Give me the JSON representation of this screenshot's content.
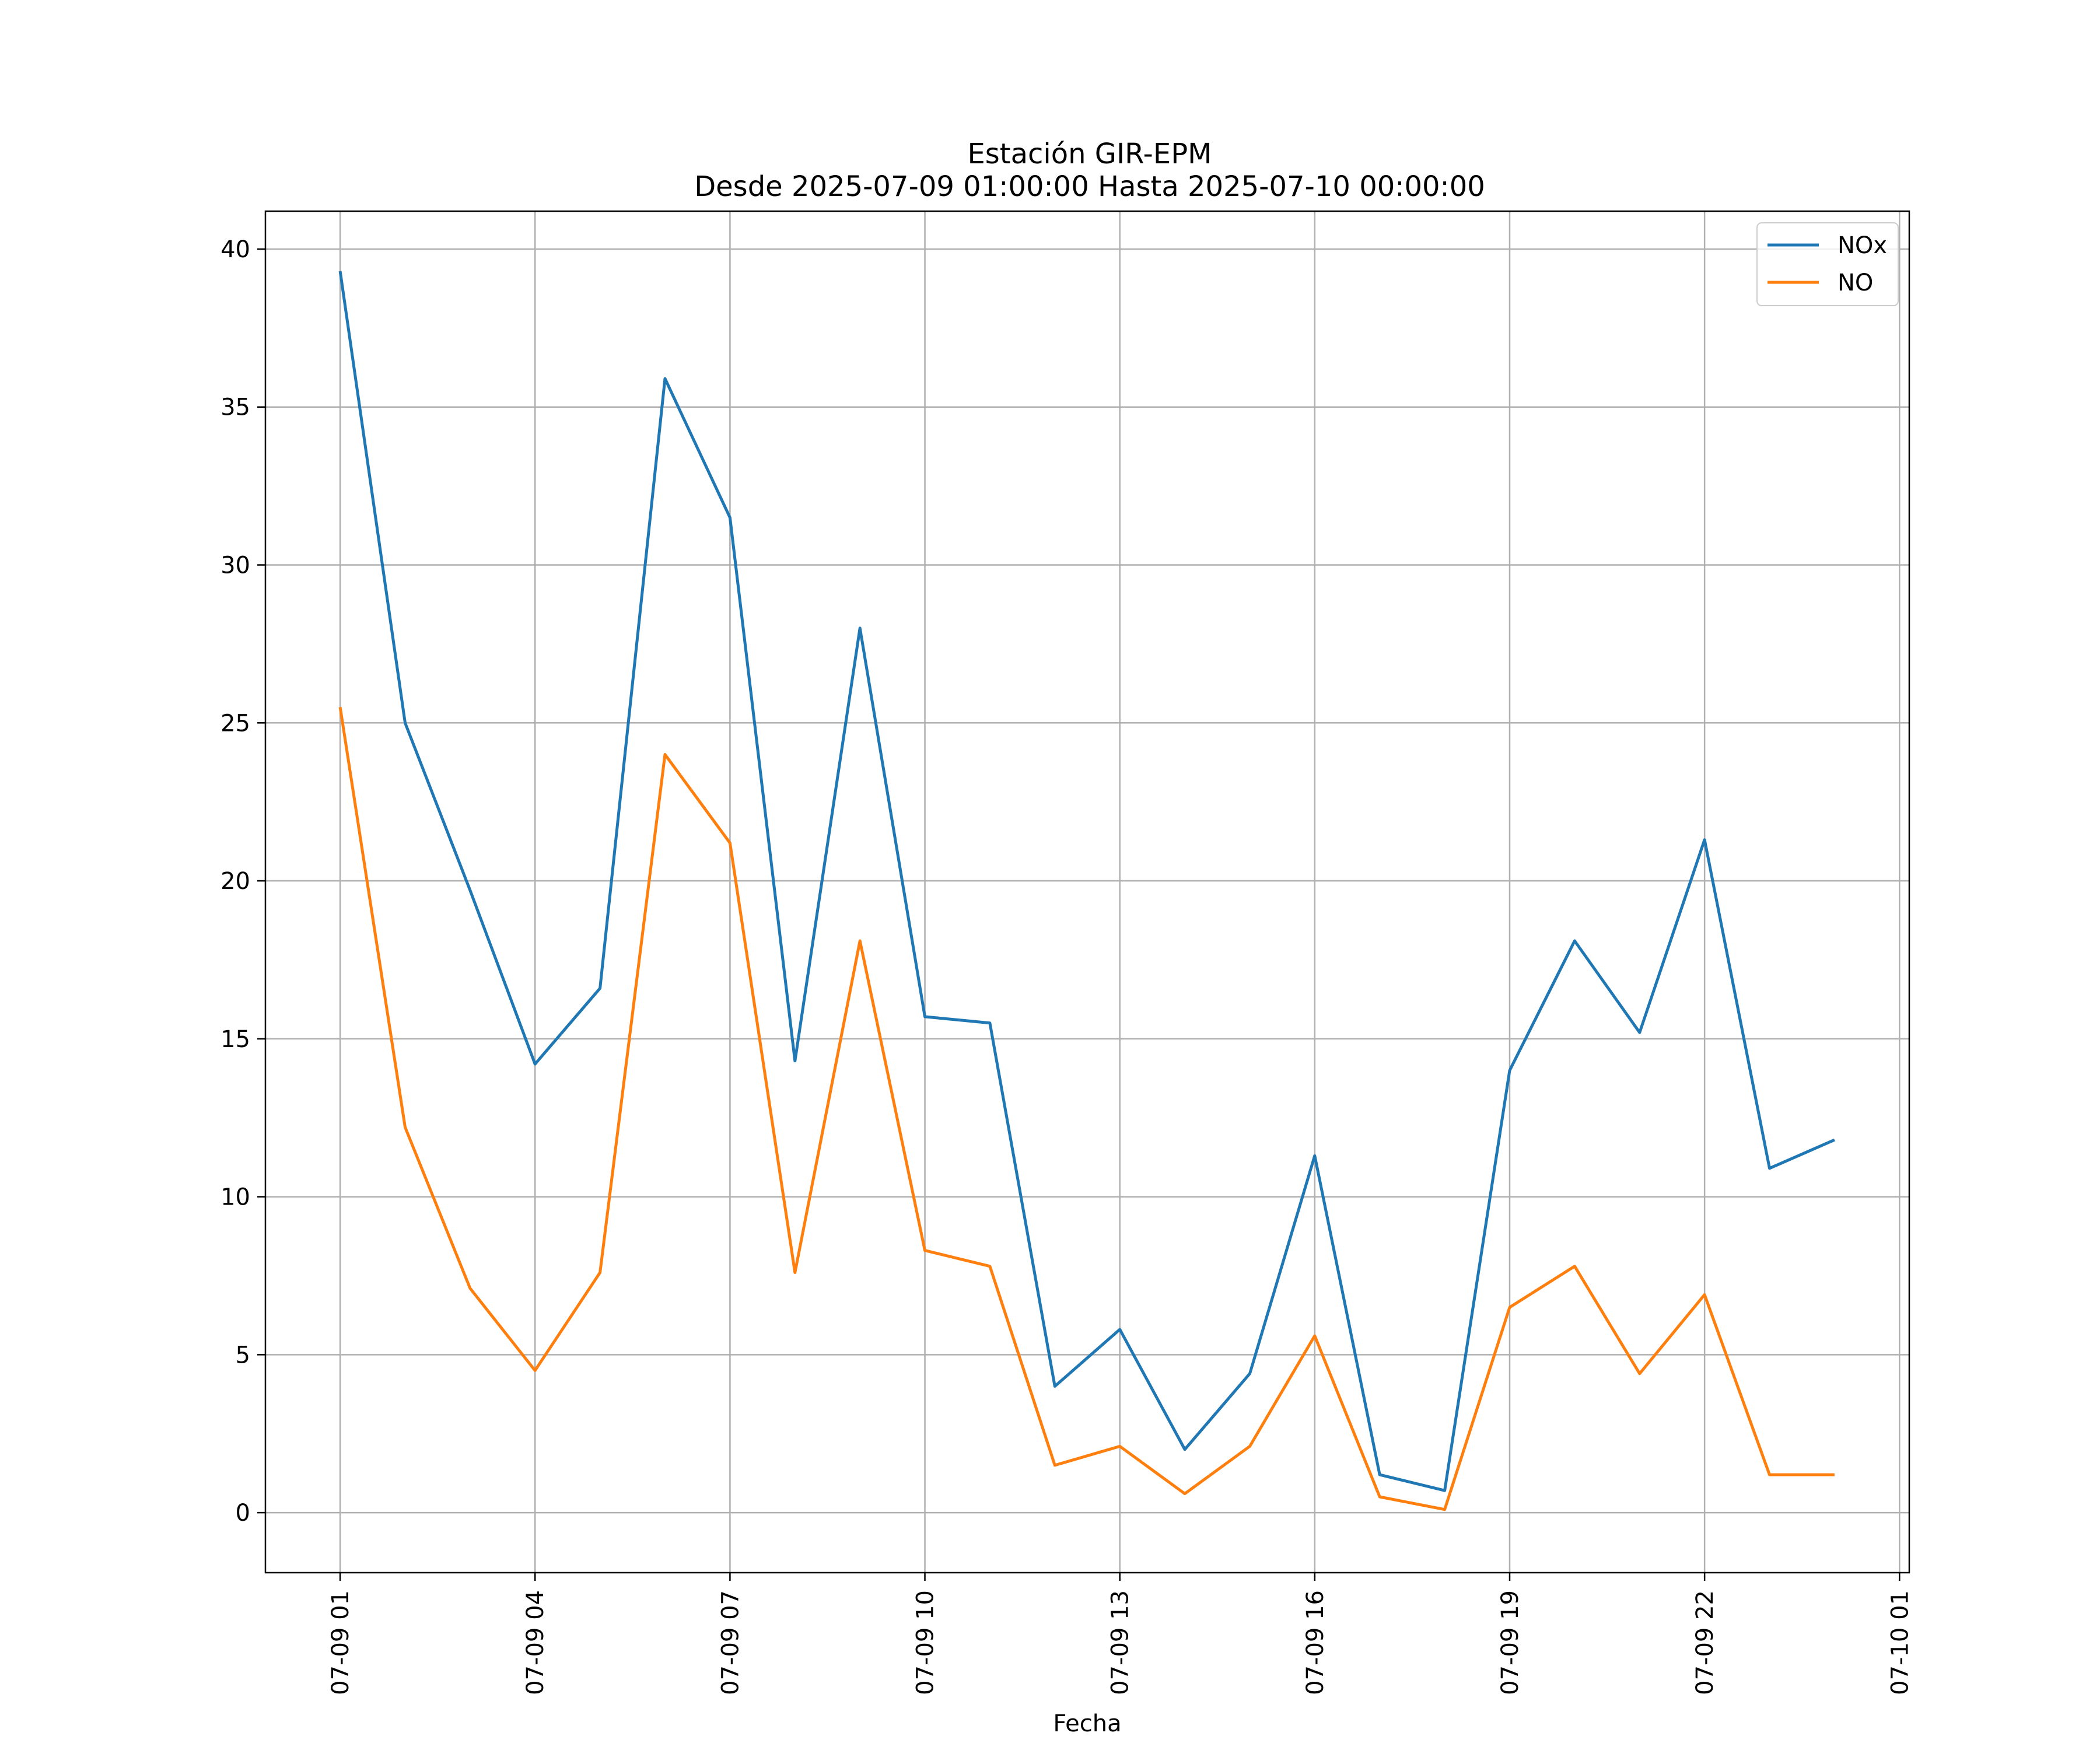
{
  "chart_data": {
    "type": "line",
    "title": "Estación GIR-EPM",
    "subtitle": "Desde 2025-07-09 01:00:00 Hasta 2025-07-10 00:00:00",
    "xlabel": "Fecha",
    "ylabel": "",
    "grid": true,
    "legend_position": "top-right",
    "x_hours": [
      1,
      2,
      3,
      4,
      5,
      6,
      7,
      8,
      9,
      10,
      11,
      12,
      13,
      14,
      15,
      16,
      17,
      18,
      19,
      20,
      21,
      22,
      23,
      24
    ],
    "xlim_hours": [
      -0.15,
      25.15
    ],
    "xticks": [
      {
        "hour": 1,
        "label": "07-09 01"
      },
      {
        "hour": 4,
        "label": "07-09 04"
      },
      {
        "hour": 7,
        "label": "07-09 07"
      },
      {
        "hour": 10,
        "label": "07-09 10"
      },
      {
        "hour": 13,
        "label": "07-09 13"
      },
      {
        "hour": 16,
        "label": "07-09 16"
      },
      {
        "hour": 19,
        "label": "07-09 19"
      },
      {
        "hour": 22,
        "label": "07-09 22"
      },
      {
        "hour": 25,
        "label": "07-10 01"
      }
    ],
    "ylim": [
      -1.9,
      41.2
    ],
    "yticks": [
      {
        "value": 0,
        "label": "0"
      },
      {
        "value": 5,
        "label": "5"
      },
      {
        "value": 10,
        "label": "10"
      },
      {
        "value": 15,
        "label": "15"
      },
      {
        "value": 20,
        "label": "20"
      },
      {
        "value": 25,
        "label": "25"
      },
      {
        "value": 30,
        "label": "30"
      },
      {
        "value": 35,
        "label": "35"
      },
      {
        "value": 40,
        "label": "40"
      }
    ],
    "series": [
      {
        "name": "NOx",
        "color": "#1f77b4",
        "values": [
          39.3,
          25.0,
          19.7,
          14.2,
          16.6,
          35.9,
          31.5,
          14.3,
          28.0,
          15.7,
          15.5,
          4.0,
          5.8,
          2.0,
          4.4,
          11.3,
          1.2,
          0.7,
          14.0,
          18.1,
          15.2,
          21.3,
          10.9,
          11.8
        ]
      },
      {
        "name": "NO",
        "color": "#ff7f0e",
        "values": [
          25.5,
          12.2,
          7.1,
          4.5,
          7.6,
          24.0,
          21.2,
          7.6,
          18.1,
          8.3,
          7.8,
          1.5,
          2.1,
          0.6,
          2.1,
          5.6,
          0.5,
          0.1,
          6.5,
          7.8,
          4.4,
          6.9,
          1.2,
          1.2
        ]
      }
    ]
  }
}
